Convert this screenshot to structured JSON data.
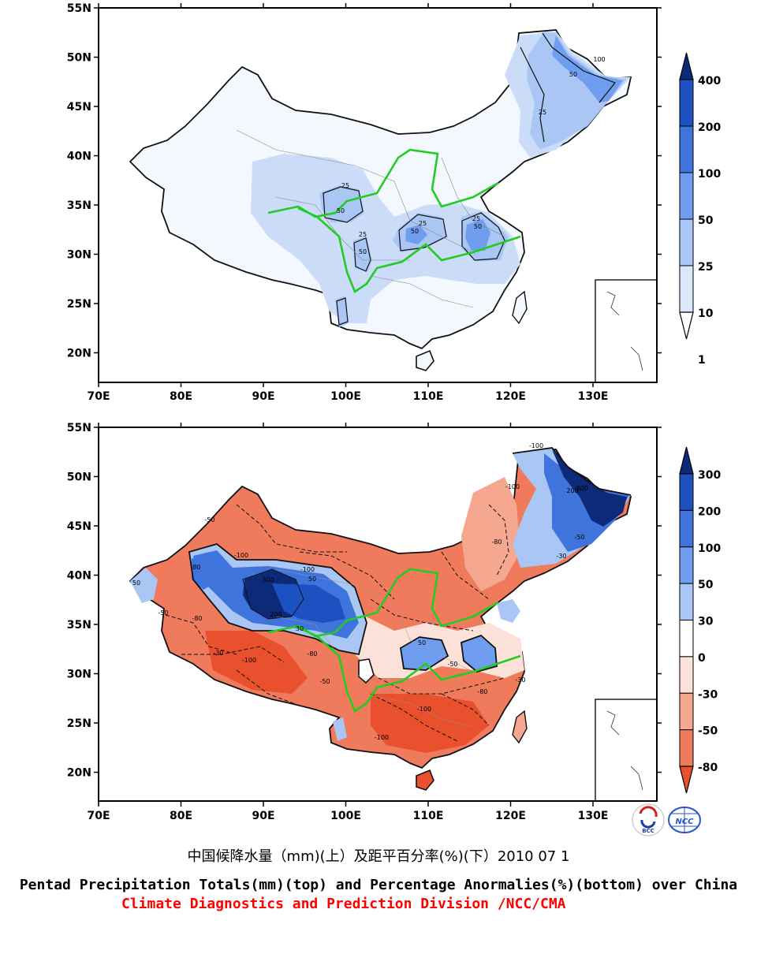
{
  "top_map": {
    "lat_labels": [
      "55N",
      "50N",
      "45N",
      "40N",
      "35N",
      "30N",
      "25N",
      "20N"
    ],
    "lon_labels": [
      "70E",
      "80E",
      "90E",
      "100E",
      "110E",
      "120E",
      "130E"
    ],
    "contour_labels": [
      "25",
      "50",
      "100",
      "25",
      "50",
      "25",
      "50",
      "25",
      "50",
      "25",
      "50"
    ],
    "colorbar": {
      "labels": [
        "400",
        "200",
        "100",
        "50",
        "25",
        "10",
        "1"
      ],
      "colors": [
        "#0d2a78",
        "#1d50c0",
        "#3f74dd",
        "#6f9ef0",
        "#a9c6f5",
        "#dbe7fb",
        "#ffffff"
      ]
    }
  },
  "bottom_map": {
    "lat_labels": [
      "55N",
      "50N",
      "45N",
      "40N",
      "35N",
      "30N",
      "25N",
      "20N"
    ],
    "lon_labels": [
      "70E",
      "80E",
      "90E",
      "100E",
      "110E",
      "120E",
      "130E"
    ],
    "contour_labels": [
      "-100",
      "300",
      "200",
      "-100",
      "50",
      "-80",
      "-50",
      "-100",
      "300",
      "-100",
      "-80",
      "-50",
      "-30",
      "200",
      "50",
      "-50",
      "-80",
      "-30",
      "-100",
      "-80",
      "-100",
      "-50",
      "30",
      "-100",
      "-80",
      "50",
      "-30",
      "-50"
    ],
    "colorbar": {
      "labels": [
        "300",
        "200",
        "100",
        "50",
        "30",
        "0",
        "-30",
        "-50",
        "-80"
      ],
      "colors": [
        "#0d2a78",
        "#1d50c0",
        "#3f74dd",
        "#6f9ef0",
        "#a9c6f5",
        "#ffffff",
        "#fbe1d8",
        "#f5a78f",
        "#ef7a5c",
        "#e8502e"
      ]
    }
  },
  "logos": {
    "left": "BCC",
    "right": "NCC"
  },
  "caption": {
    "chinese": "中国候降水量（mm)(上）及距平百分率(%)(下）2010 07 1",
    "english": "Pentad Precipitation Totals(mm)(top) and Percentage Anormalies(%)(bottom) over China",
    "org": "Climate Diagnostics and Prediction Division /NCC/CMA"
  },
  "river_color": "#22cc22"
}
